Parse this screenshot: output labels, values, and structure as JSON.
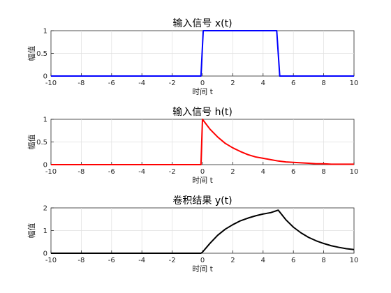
{
  "chart_data": [
    {
      "type": "line",
      "title": "输入信号 x(t)",
      "xlabel": "时间 t",
      "ylabel": "幅值",
      "xlim": [
        -10,
        10
      ],
      "ylim": [
        0,
        1
      ],
      "xticks": [
        -10,
        -8,
        -6,
        -4,
        -2,
        0,
        2,
        4,
        6,
        8,
        10
      ],
      "yticks": [
        0,
        0.5,
        1
      ],
      "ytick_labels": [
        "0",
        "0.5",
        "1"
      ],
      "grid": true,
      "series": [
        {
          "color": "#0000ff",
          "x": [
            -10,
            -0.1,
            0.05,
            4.9,
            5.1,
            10
          ],
          "y": [
            0,
            0,
            1,
            1,
            0,
            0
          ]
        }
      ]
    },
    {
      "type": "line",
      "title": "输入信号 h(t)",
      "xlabel": "时间 t",
      "ylabel": "幅值",
      "xlim": [
        -10,
        10
      ],
      "ylim": [
        0,
        1
      ],
      "xticks": [
        -10,
        -8,
        -6,
        -4,
        -2,
        0,
        2,
        4,
        6,
        8,
        10
      ],
      "yticks": [
        0,
        0.5,
        1
      ],
      "ytick_labels": [
        "0",
        "0.5",
        "1"
      ],
      "grid": true,
      "series": [
        {
          "color": "#ff0000",
          "x": [
            -10,
            -0.1,
            0,
            0.5,
            1,
            1.5,
            2,
            2.5,
            3,
            3.5,
            4,
            4.5,
            5,
            5.5,
            6,
            6.5,
            7,
            7.5,
            8,
            8.5,
            9,
            9.5,
            10
          ],
          "y": [
            0,
            0,
            1,
            0.78,
            0.61,
            0.47,
            0.37,
            0.29,
            0.22,
            0.17,
            0.14,
            0.11,
            0.08,
            0.06,
            0.05,
            0.04,
            0.03,
            0.02,
            0.02,
            0.01,
            0.01,
            0.01,
            0.01
          ]
        }
      ]
    },
    {
      "type": "line",
      "title": "卷积结果 y(t)",
      "xlabel": "时间 t",
      "ylabel": "幅值",
      "xlim": [
        -10,
        10
      ],
      "ylim": [
        0,
        2
      ],
      "xticks": [
        -10,
        -8,
        -6,
        -4,
        -2,
        0,
        2,
        4,
        6,
        8,
        10
      ],
      "yticks": [
        0,
        1,
        2
      ],
      "ytick_labels": [
        "0",
        "1",
        "2"
      ],
      "grid": true,
      "series": [
        {
          "color": "#000000",
          "x": [
            -10,
            -0.1,
            0,
            0.5,
            1,
            1.5,
            2,
            2.5,
            3,
            3.5,
            4,
            4.5,
            5,
            5.5,
            6,
            6.5,
            7,
            7.5,
            8,
            8.5,
            9,
            9.5,
            10
          ],
          "y": [
            0,
            0,
            0.05,
            0.44,
            0.79,
            1.06,
            1.26,
            1.43,
            1.55,
            1.65,
            1.73,
            1.79,
            1.9,
            1.48,
            1.15,
            0.9,
            0.7,
            0.55,
            0.43,
            0.33,
            0.26,
            0.2,
            0.16
          ]
        }
      ]
    }
  ]
}
